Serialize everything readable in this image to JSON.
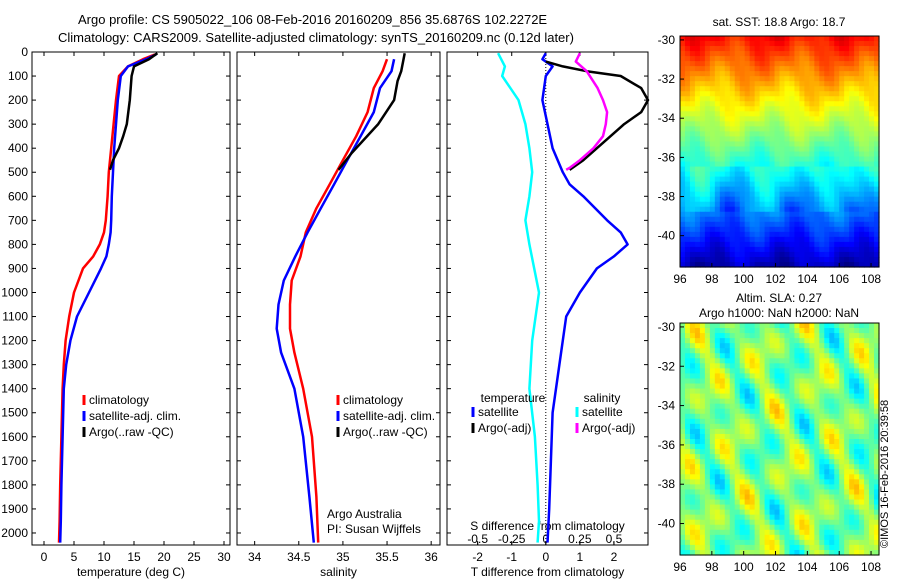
{
  "header": {
    "title_line1": "Argo profile: CS 5905022_106 08-Feb-2016 20160209_856 35.6876S 102.2272E",
    "title_line2": "Climatology: CARS2009. Satellite-adjusted climatology: synTS_20160209.nc (0.12d later)"
  },
  "colors": {
    "climatology": "#ff0000",
    "satellite": "#0000ff",
    "argo": "#000000",
    "argo_salinity_diff": "#ff00ff",
    "sat_salinity_diff": "#00ffff"
  },
  "chart_data": [
    {
      "id": "temperature",
      "type": "line",
      "xlabel": "temperature (deg C)",
      "xlim": [
        -2,
        31
      ],
      "xticks": [
        "0",
        "5",
        "10",
        "15",
        "20",
        "25",
        "30"
      ],
      "ylim": [
        2050,
        0
      ],
      "yticks": [
        "0",
        "100",
        "200",
        "300",
        "400",
        "500",
        "600",
        "700",
        "800",
        "900",
        "1000",
        "1100",
        "1200",
        "1300",
        "1400",
        "1500",
        "1600",
        "1700",
        "1800",
        "1900",
        "2000"
      ],
      "legend": [
        "climatology",
        "satellite-adj. clim.",
        "Argo(..raw -QC)"
      ],
      "series": [
        {
          "name": "climatology",
          "color": "#ff0000",
          "x": [
            18.5,
            16.5,
            14,
            12.5,
            12,
            11.6,
            11.2,
            10.8,
            10.6,
            10.3,
            10,
            9.3,
            8.2,
            6.5,
            5,
            4.2,
            3.6,
            3.3,
            3.1,
            2.9,
            2.7,
            2.6,
            2.5
          ],
          "y": [
            10,
            30,
            60,
            100,
            200,
            300,
            400,
            500,
            600,
            700,
            750,
            800,
            850,
            900,
            1000,
            1100,
            1200,
            1300,
            1400,
            1600,
            1800,
            1950,
            2040
          ]
        },
        {
          "name": "satellite-adj. clim.",
          "color": "#0000ff",
          "x": [
            18.7,
            17,
            14,
            12.8,
            12.3,
            12,
            11.7,
            11.5,
            11.3,
            11.2,
            11.1,
            10.8,
            10.4,
            9.5,
            7.5,
            5.5,
            4.4,
            3.7,
            3.3,
            3.1,
            2.9,
            2.8,
            2.7
          ],
          "y": [
            10,
            30,
            60,
            100,
            200,
            300,
            400,
            500,
            600,
            700,
            750,
            800,
            850,
            900,
            1000,
            1100,
            1200,
            1300,
            1400,
            1600,
            1800,
            1950,
            2040
          ]
        },
        {
          "name": "Argo(..raw -QC)",
          "color": "#000000",
          "x": [
            18.9,
            17.5,
            15,
            14.6,
            14.3,
            13.8,
            13.2,
            12.5,
            11.5,
            11
          ],
          "y": [
            5,
            30,
            60,
            100,
            200,
            300,
            350,
            400,
            450,
            490
          ]
        }
      ]
    },
    {
      "id": "salinity",
      "type": "line",
      "xlabel": "salinity",
      "xlim": [
        33.8,
        36.1
      ],
      "xticks": [
        "34",
        "34.5",
        "35",
        "35.5",
        "36"
      ],
      "ylim": [
        2050,
        0
      ],
      "legend": [
        "climatology",
        "satellite-adj. clim.",
        "Argo(..raw -QC)"
      ],
      "annotation": [
        "Argo Australia",
        "PI: Susan Wijffels"
      ],
      "series": [
        {
          "name": "climatology",
          "color": "#ff0000",
          "x": [
            35.5,
            35.45,
            35.35,
            35.28,
            35.15,
            35.0,
            34.85,
            34.7,
            34.58,
            34.52,
            34.42,
            34.4,
            34.4,
            34.45,
            34.55,
            34.65,
            34.7,
            34.72
          ],
          "y": [
            30,
            80,
            150,
            250,
            350,
            450,
            550,
            650,
            750,
            850,
            950,
            1050,
            1150,
            1250,
            1400,
            1600,
            1850,
            2040
          ]
        },
        {
          "name": "satellite-adj. clim.",
          "color": "#0000ff",
          "x": [
            35.58,
            35.55,
            35.42,
            35.35,
            35.2,
            35.05,
            34.9,
            34.75,
            34.6,
            34.46,
            34.33,
            34.27,
            34.25,
            34.3,
            34.45,
            34.55,
            34.62,
            34.67
          ],
          "y": [
            30,
            80,
            150,
            250,
            350,
            450,
            550,
            650,
            750,
            850,
            950,
            1050,
            1150,
            1250,
            1400,
            1600,
            1850,
            2040
          ]
        },
        {
          "name": "Argo(..raw -QC)",
          "color": "#000000",
          "x": [
            35.7,
            35.66,
            35.62,
            35.58,
            35.4,
            35.1,
            34.95
          ],
          "y": [
            5,
            80,
            120,
            200,
            300,
            420,
            490
          ]
        }
      ]
    },
    {
      "id": "differences",
      "type": "line",
      "xlabel": "T difference from climatology",
      "xlim": [
        -2.9,
        3.0
      ],
      "xticks": [
        "-2",
        "-1",
        "0",
        "1",
        "2"
      ],
      "xlabel_top": "S difference from climatology",
      "xticks_top": [
        "-0.5",
        "-0.25",
        "0",
        "0.25",
        "0.5"
      ],
      "ylim": [
        2050,
        0
      ],
      "legend_left_title": "temperature",
      "legend_right_title": "salinity",
      "legend": [
        "satellite",
        "Argo(-adj)",
        "satellite",
        "Argo(-adj)"
      ],
      "series": [
        {
          "name": "T satellite",
          "color": "#0000ff",
          "x": [
            0,
            -0.1,
            0.2,
            0,
            -0.1,
            0.05,
            0.2,
            0.5,
            0.7,
            1.1,
            1.8,
            2.2,
            2.4,
            2.0,
            1.5,
            1.0,
            0.6,
            0.4,
            0.2,
            0.15,
            0.1,
            0.05
          ],
          "y": [
            5,
            30,
            60,
            100,
            200,
            300,
            400,
            500,
            550,
            600,
            700,
            750,
            800,
            850,
            900,
            1000,
            1100,
            1300,
            1500,
            1700,
            1900,
            2040
          ]
        },
        {
          "name": "T Argo(-adj)",
          "color": "#000000",
          "x": [
            0,
            0.5,
            1.2,
            2.2,
            2.8,
            3.0,
            2.8,
            2.3,
            1.9,
            1.5,
            1.1,
            0.7
          ],
          "y": [
            40,
            60,
            80,
            100,
            150,
            200,
            250,
            300,
            350,
            400,
            450,
            490
          ]
        },
        {
          "name": "S satellite",
          "color": "#00ffff",
          "x": [
            -0.35,
            -0.3,
            -0.32,
            -0.2,
            -0.15,
            -0.12,
            -0.1,
            -0.12,
            -0.15,
            -0.12,
            -0.05,
            -0.1,
            -0.12,
            -0.08,
            -0.06,
            -0.05,
            -0.06
          ],
          "y": [
            5,
            60,
            100,
            200,
            300,
            400,
            500,
            600,
            700,
            800,
            1000,
            1200,
            1400,
            1600,
            1800,
            1950,
            2040
          ]
        },
        {
          "name": "S Argo(-adj)",
          "color": "#ff00ff",
          "x": [
            0.25,
            0.22,
            0.3,
            0.38,
            0.42,
            0.45,
            0.44,
            0.42,
            0.35,
            0.25,
            0.18,
            0.15
          ],
          "y": [
            5,
            40,
            80,
            150,
            200,
            250,
            300,
            350,
            400,
            450,
            480,
            490
          ]
        }
      ]
    },
    {
      "id": "sst-map",
      "type": "heatmap",
      "title": "sat. SST: 18.8 Argo: 18.7",
      "xticks": [
        "96",
        "98",
        "100",
        "102",
        "104",
        "106",
        "108"
      ],
      "yticks": [
        "-30",
        "-32",
        "-34",
        "-36",
        "-38",
        "-40"
      ],
      "xlim": [
        96,
        108.5
      ],
      "ylim": [
        -41.6,
        -29.8
      ],
      "colormap": "jet, warm north to cold south"
    },
    {
      "id": "sla-map",
      "type": "heatmap",
      "title_line1": "Altim. SLA: 0.27",
      "title_line2": "Argo h1000: NaN h2000: NaN",
      "xticks": [
        "96",
        "98",
        "100",
        "102",
        "104",
        "106",
        "108"
      ],
      "yticks": [
        "-30",
        "-32",
        "-34",
        "-36",
        "-38",
        "-40"
      ],
      "xlim": [
        96,
        108.5
      ],
      "ylim": [
        -41.6,
        -29.8
      ],
      "colormap": "jet, mostly green with yellow/orange and blue eddies"
    }
  ],
  "footer": {
    "stamp": "©IMOS 16-Feb-2016 20:39:58"
  }
}
